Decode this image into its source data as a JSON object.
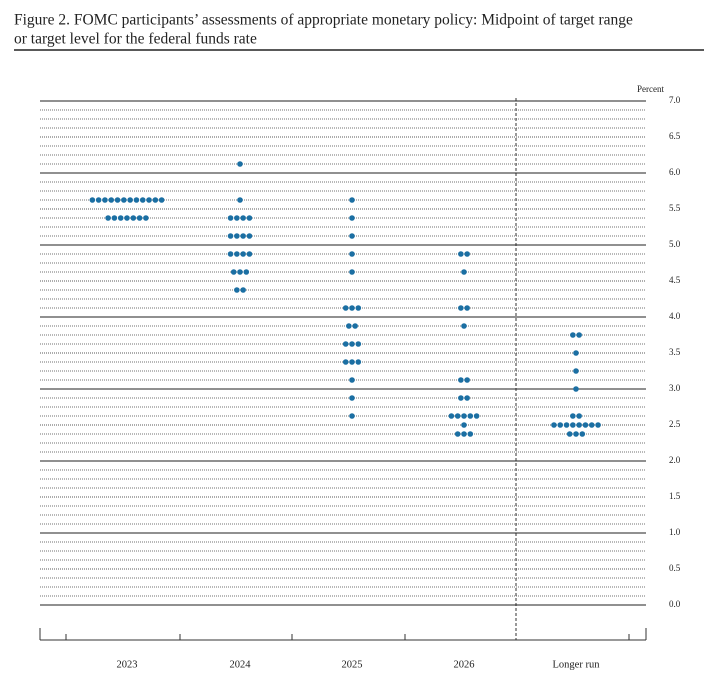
{
  "chart_data": {
    "type": "dot",
    "title": "Figure 2.  FOMC participants’ assessments of appropriate monetary policy: Midpoint of target range",
    "subtitle": "or target level for the federal funds rate",
    "y_label": "Percent",
    "categories": [
      "2023",
      "2024",
      "2025",
      "2026",
      "Longer run"
    ],
    "color": "#1b6fa3",
    "ylim": [
      0,
      7
    ],
    "yticks": [
      {
        "value": 0,
        "label": "0.0"
      },
      0.5,
      {
        "value": 1,
        "label": "1.0"
      },
      1.5,
      {
        "value": 2,
        "label": "2.0"
      },
      2.5,
      {
        "value": 3,
        "label": "3.0"
      },
      3.5,
      {
        "value": 4,
        "label": "4.0"
      },
      4.5,
      {
        "value": 5,
        "label": "5.0"
      },
      5.5,
      {
        "value": 6,
        "label": "6.0"
      },
      6.5,
      {
        "value": 7,
        "label": "7.0"
      }
    ],
    "dots": [
      [
        {
          "value": 5.625,
          "count": 12
        },
        {
          "value": 5.375,
          "count": 7
        }
      ],
      [
        {
          "value": 6.125,
          "count": 1
        },
        {
          "value": 5.625,
          "count": 1
        },
        {
          "value": 5.375,
          "count": 4
        },
        {
          "value": 5.125,
          "count": 4
        },
        {
          "value": 4.875,
          "count": 4
        },
        {
          "value": 4.625,
          "count": 3
        },
        {
          "value": 4.375,
          "count": 2
        }
      ],
      [
        {
          "value": 5.625,
          "count": 1
        },
        {
          "value": 5.375,
          "count": 1
        },
        {
          "value": 5.125,
          "count": 1
        },
        {
          "value": 4.875,
          "count": 1
        },
        {
          "value": 4.625,
          "count": 1
        },
        {
          "value": 4.125,
          "count": 3
        },
        {
          "value": 3.875,
          "count": 2
        },
        {
          "value": 3.625,
          "count": 3
        },
        {
          "value": 3.375,
          "count": 3
        },
        {
          "value": 3.125,
          "count": 1
        },
        {
          "value": 2.875,
          "count": 1
        },
        {
          "value": 2.625,
          "count": 1
        }
      ],
      [
        {
          "value": 4.875,
          "count": 2
        },
        {
          "value": 4.625,
          "count": 1
        },
        {
          "value": 4.125,
          "count": 2
        },
        {
          "value": 3.875,
          "count": 1
        },
        {
          "value": 3.125,
          "count": 2
        },
        {
          "value": 2.875,
          "count": 2
        },
        {
          "value": 2.625,
          "count": 5
        },
        {
          "value": 2.5,
          "count": 1
        },
        {
          "value": 2.375,
          "count": 3
        }
      ],
      [
        {
          "value": 3.75,
          "count": 2
        },
        {
          "value": 3.5,
          "count": 1
        },
        {
          "value": 3.25,
          "count": 1
        },
        {
          "value": 3,
          "count": 1
        },
        {
          "value": 2.625,
          "count": 2
        },
        {
          "value": 2.5,
          "count": 8
        },
        {
          "value": 2.375,
          "count": 3
        }
      ]
    ]
  }
}
